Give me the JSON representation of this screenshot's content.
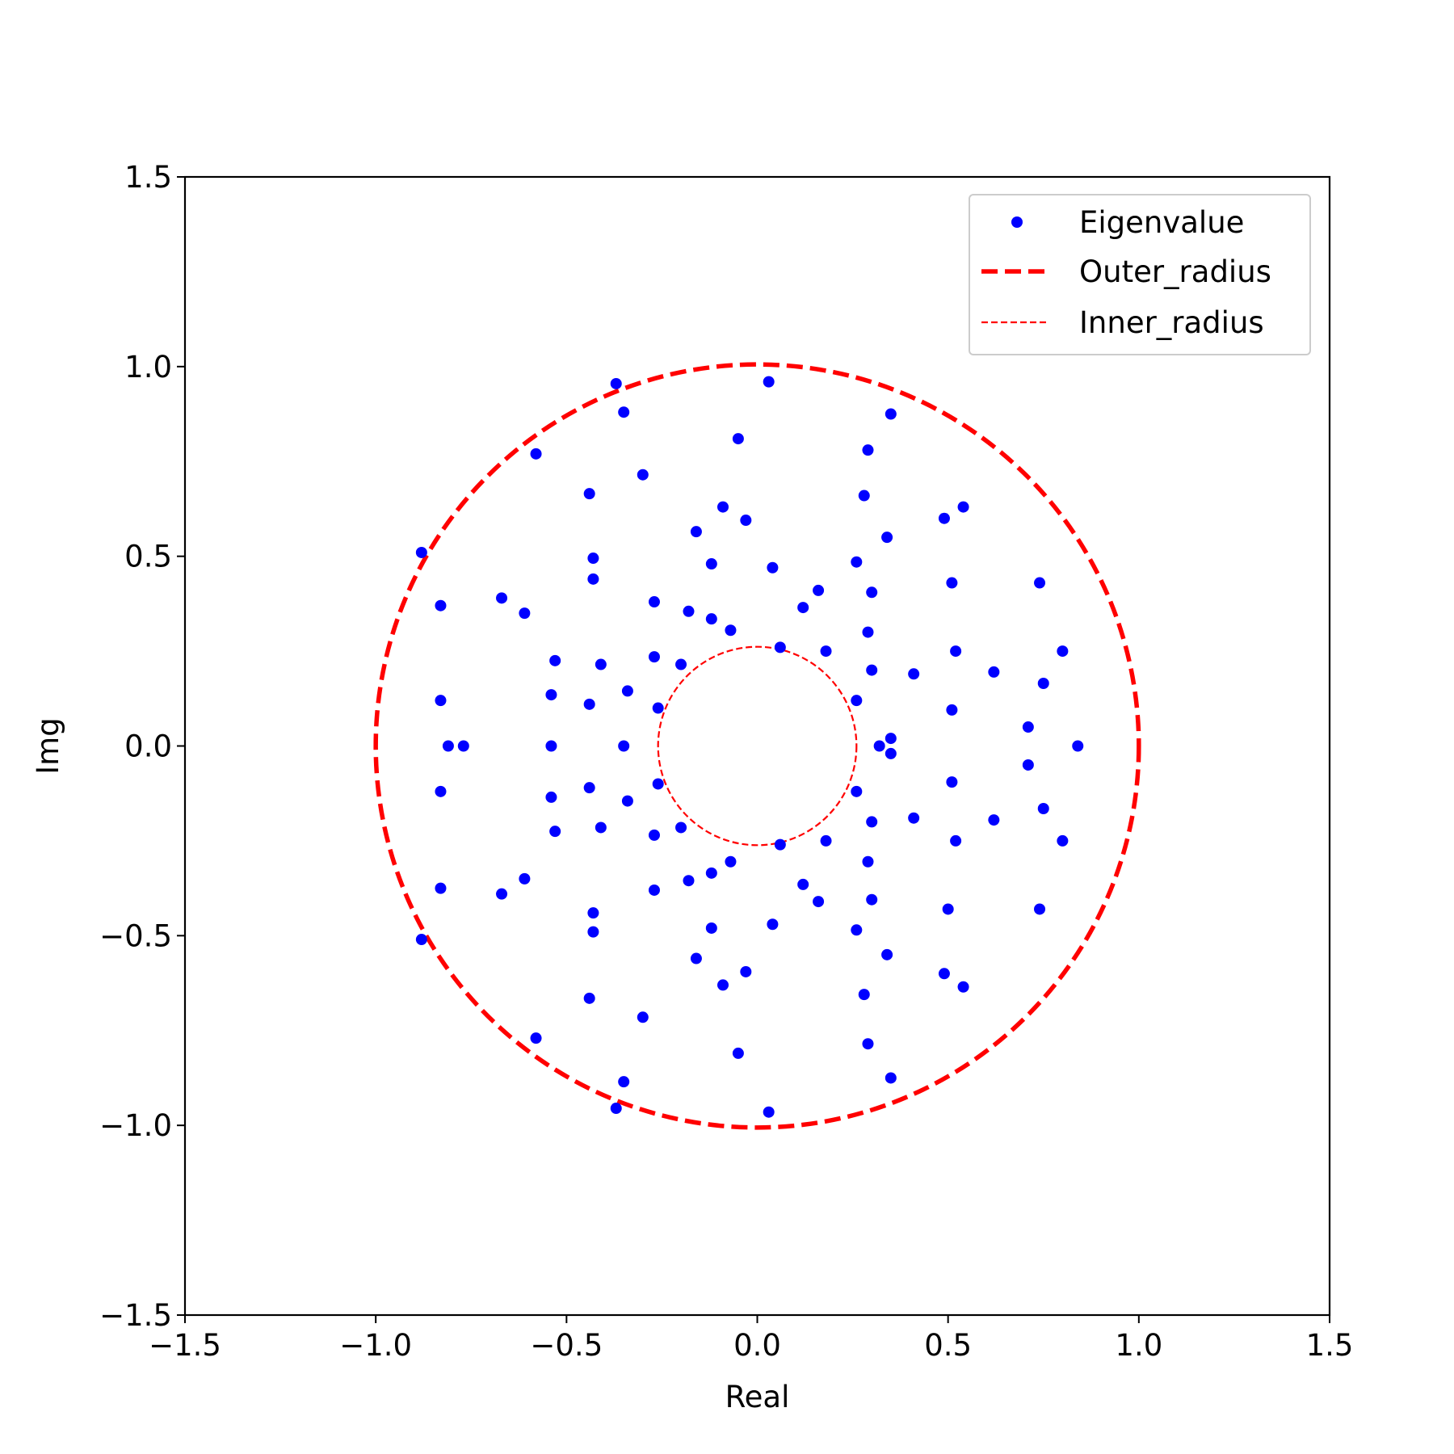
{
  "chart_data": {
    "type": "scatter",
    "title": "",
    "xlabel": "Real",
    "ylabel": "Img",
    "xlim": [
      -1.5,
      1.5
    ],
    "ylim": [
      -1.5,
      1.5
    ],
    "xticks": [
      -1.5,
      -1.0,
      -0.5,
      0.0,
      0.5,
      1.0,
      1.5
    ],
    "yticks": [
      -1.5,
      -1.0,
      -0.5,
      0.0,
      0.5,
      1.0,
      1.5
    ],
    "xtick_labels": [
      "−1.5",
      "−1.0",
      "−0.5",
      "0.0",
      "0.5",
      "1.0",
      "1.5"
    ],
    "ytick_labels": [
      "−1.5",
      "−1.0",
      "−0.5",
      "0.0",
      "0.5",
      "1.0",
      "1.5"
    ],
    "grid": false,
    "legend_position": "top-right",
    "colors": {
      "points": "#0000ff",
      "circles": "#ff0000"
    },
    "series": [
      {
        "name": "Eigenvalue",
        "style": "dots",
        "upper_half_points": [
          [
            0.84,
            0.0
          ],
          [
            0.71,
            0.05
          ],
          [
            0.75,
            0.165
          ],
          [
            0.8,
            0.25
          ],
          [
            0.74,
            0.43
          ],
          [
            0.62,
            0.195
          ],
          [
            0.52,
            0.25
          ],
          [
            0.51,
            0.095
          ],
          [
            0.51,
            0.43
          ],
          [
            0.54,
            0.63
          ],
          [
            0.49,
            0.6
          ],
          [
            0.41,
            0.19
          ],
          [
            0.35,
            0.02
          ],
          [
            0.32,
            0.0
          ],
          [
            0.3,
            0.2
          ],
          [
            0.29,
            0.3
          ],
          [
            0.3,
            0.405
          ],
          [
            0.34,
            0.55
          ],
          [
            0.28,
            0.66
          ],
          [
            0.29,
            0.78
          ],
          [
            0.35,
            0.875
          ],
          [
            0.26,
            0.485
          ],
          [
            0.26,
            0.12
          ],
          [
            0.18,
            0.25
          ],
          [
            0.16,
            0.41
          ],
          [
            0.12,
            0.365
          ],
          [
            0.06,
            0.26
          ],
          [
            0.04,
            0.47
          ],
          [
            0.03,
            0.96
          ],
          [
            -0.03,
            0.595
          ],
          [
            -0.05,
            0.81
          ],
          [
            -0.07,
            0.305
          ],
          [
            -0.09,
            0.63
          ],
          [
            -0.12,
            0.335
          ],
          [
            -0.12,
            0.48
          ],
          [
            -0.16,
            0.565
          ],
          [
            -0.18,
            0.355
          ],
          [
            -0.2,
            0.215
          ],
          [
            -0.26,
            0.1
          ],
          [
            -0.27,
            0.235
          ],
          [
            -0.27,
            0.38
          ],
          [
            -0.3,
            0.715
          ],
          [
            -0.34,
            0.145
          ],
          [
            -0.35,
            0.0
          ],
          [
            -0.35,
            0.88
          ],
          [
            -0.37,
            0.955
          ],
          [
            -0.41,
            0.215
          ],
          [
            -0.43,
            0.44
          ],
          [
            -0.43,
            0.495
          ],
          [
            -0.44,
            0.665
          ],
          [
            -0.44,
            0.11
          ],
          [
            -0.53,
            0.225
          ],
          [
            -0.54,
            0.135
          ],
          [
            -0.54,
            0.0
          ],
          [
            -0.58,
            0.77
          ],
          [
            -0.61,
            0.35
          ],
          [
            -0.67,
            0.39
          ],
          [
            -0.77,
            0.0
          ],
          [
            -0.81,
            0.0
          ],
          [
            -0.83,
            0.37
          ],
          [
            -0.83,
            0.12
          ],
          [
            -0.88,
            0.51
          ]
        ],
        "lower_half_points": [
          [
            0.71,
            -0.05
          ],
          [
            0.75,
            -0.165
          ],
          [
            0.8,
            -0.25
          ],
          [
            0.74,
            -0.43
          ],
          [
            0.62,
            -0.195
          ],
          [
            0.52,
            -0.25
          ],
          [
            0.51,
            -0.095
          ],
          [
            0.5,
            -0.43
          ],
          [
            0.54,
            -0.635
          ],
          [
            0.49,
            -0.6
          ],
          [
            0.41,
            -0.19
          ],
          [
            0.35,
            -0.02
          ],
          [
            0.3,
            -0.2
          ],
          [
            0.29,
            -0.305
          ],
          [
            0.3,
            -0.405
          ],
          [
            0.34,
            -0.55
          ],
          [
            0.28,
            -0.655
          ],
          [
            0.29,
            -0.785
          ],
          [
            0.35,
            -0.875
          ],
          [
            0.26,
            -0.485
          ],
          [
            0.26,
            -0.12
          ],
          [
            0.18,
            -0.25
          ],
          [
            0.16,
            -0.41
          ],
          [
            0.12,
            -0.365
          ],
          [
            0.06,
            -0.26
          ],
          [
            0.04,
            -0.47
          ],
          [
            0.03,
            -0.965
          ],
          [
            -0.03,
            -0.595
          ],
          [
            -0.05,
            -0.81
          ],
          [
            -0.07,
            -0.305
          ],
          [
            -0.09,
            -0.63
          ],
          [
            -0.12,
            -0.335
          ],
          [
            -0.12,
            -0.48
          ],
          [
            -0.16,
            -0.56
          ],
          [
            -0.18,
            -0.355
          ],
          [
            -0.2,
            -0.215
          ],
          [
            -0.26,
            -0.1
          ],
          [
            -0.27,
            -0.235
          ],
          [
            -0.27,
            -0.38
          ],
          [
            -0.3,
            -0.715
          ],
          [
            -0.34,
            -0.145
          ],
          [
            -0.35,
            -0.885
          ],
          [
            -0.37,
            -0.955
          ],
          [
            -0.41,
            -0.215
          ],
          [
            -0.43,
            -0.44
          ],
          [
            -0.43,
            -0.49
          ],
          [
            -0.44,
            -0.665
          ],
          [
            -0.44,
            -0.11
          ],
          [
            -0.53,
            -0.225
          ],
          [
            -0.54,
            -0.135
          ],
          [
            -0.58,
            -0.77
          ],
          [
            -0.61,
            -0.35
          ],
          [
            -0.67,
            -0.39
          ],
          [
            -0.83,
            -0.375
          ],
          [
            -0.83,
            -0.12
          ],
          [
            -0.88,
            -0.51
          ]
        ]
      },
      {
        "name": "Outer_radius",
        "style": "dashed-circle",
        "radius": 1.0,
        "center": [
          0,
          0
        ]
      },
      {
        "name": "Inner_radius",
        "style": "dashed-circle-thin",
        "radius": 0.26,
        "center": [
          0,
          0
        ]
      }
    ]
  }
}
